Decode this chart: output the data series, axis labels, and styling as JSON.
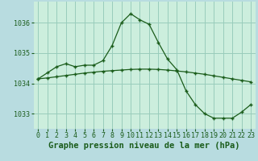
{
  "title": "Graphe pression niveau de la mer (hPa)",
  "background_color": "#b8dce0",
  "plot_bg_color": "#cceedd",
  "grid_color": "#99ccbb",
  "line_color": "#1a5c1a",
  "marker_color": "#1a5c1a",
  "hours": [
    0,
    1,
    2,
    3,
    4,
    5,
    6,
    7,
    8,
    9,
    10,
    11,
    12,
    13,
    14,
    15,
    16,
    17,
    18,
    19,
    20,
    21,
    22,
    23
  ],
  "series1": [
    1034.15,
    1034.35,
    1034.55,
    1034.65,
    1034.55,
    1034.6,
    1034.6,
    1034.75,
    1035.25,
    1036.0,
    1036.3,
    1036.1,
    1035.95,
    1035.35,
    1034.8,
    1034.45,
    1033.75,
    1033.3,
    1033.0,
    1032.85,
    1032.85,
    1032.85,
    1033.05,
    1033.3
  ],
  "series2": [
    1034.15,
    1034.18,
    1034.22,
    1034.26,
    1034.3,
    1034.34,
    1034.37,
    1034.4,
    1034.42,
    1034.44,
    1034.46,
    1034.47,
    1034.47,
    1034.46,
    1034.44,
    1034.41,
    1034.38,
    1034.34,
    1034.3,
    1034.25,
    1034.2,
    1034.15,
    1034.1,
    1034.05
  ],
  "ylim": [
    1032.5,
    1036.7
  ],
  "yticks": [
    1033,
    1034,
    1035,
    1036
  ],
  "xlabel_fontsize": 7.5,
  "tick_fontsize": 6.0
}
